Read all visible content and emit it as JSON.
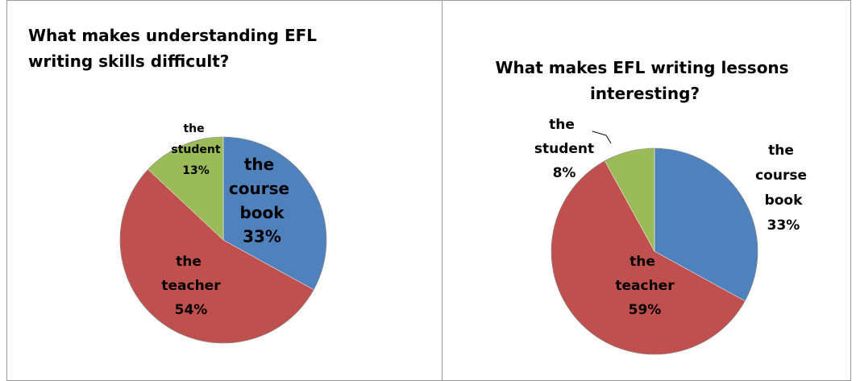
{
  "chart_data": [
    {
      "type": "pie",
      "title": "What makes understanding EFL writing skills difficult?",
      "categories": [
        "the course book",
        "the teacher",
        "the student"
      ],
      "values": [
        33,
        54,
        13
      ],
      "value_labels": [
        "33%",
        "54%",
        "13%"
      ],
      "colors": [
        "#4f81bd",
        "#c0504d",
        "#9bbb59"
      ]
    },
    {
      "type": "pie",
      "title": "What makes EFL writing lessons interesting?",
      "categories": [
        "the course book",
        "the teacher",
        "the student"
      ],
      "values": [
        33,
        59,
        8
      ],
      "value_labels": [
        "33%",
        "59%",
        "8%"
      ],
      "colors": [
        "#4f81bd",
        "#c0504d",
        "#9bbb59"
      ]
    }
  ]
}
